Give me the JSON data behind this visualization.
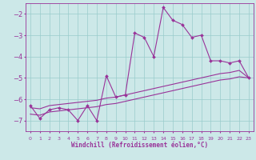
{
  "xlabel": "Windchill (Refroidissement éolien,°C)",
  "background_color": "#cce8e8",
  "grid_color": "#99cccc",
  "line_color": "#993399",
  "x_values": [
    0,
    1,
    2,
    3,
    4,
    5,
    6,
    7,
    8,
    9,
    10,
    11,
    12,
    13,
    14,
    15,
    16,
    17,
    18,
    19,
    20,
    21,
    22,
    23
  ],
  "y_main": [
    -6.3,
    -6.9,
    -6.5,
    -6.4,
    -6.5,
    -7.0,
    -6.3,
    -7.0,
    -4.9,
    -5.9,
    -5.8,
    -2.9,
    -3.1,
    -4.0,
    -1.7,
    -2.3,
    -2.5,
    -3.1,
    -3.0,
    -4.2,
    -4.2,
    -4.3,
    -4.2,
    -5.0
  ],
  "y_line2": [
    -6.4,
    -6.45,
    -6.3,
    -6.25,
    -6.2,
    -6.15,
    -6.1,
    -6.05,
    -5.95,
    -5.9,
    -5.8,
    -5.7,
    -5.6,
    -5.5,
    -5.4,
    -5.3,
    -5.2,
    -5.1,
    -5.0,
    -4.9,
    -4.8,
    -4.75,
    -4.65,
    -5.0
  ],
  "y_line3": [
    -6.7,
    -6.75,
    -6.6,
    -6.55,
    -6.5,
    -6.45,
    -6.4,
    -6.35,
    -6.25,
    -6.2,
    -6.1,
    -6.0,
    -5.9,
    -5.8,
    -5.7,
    -5.6,
    -5.5,
    -5.4,
    -5.3,
    -5.2,
    -5.1,
    -5.05,
    -4.95,
    -5.0
  ],
  "ylim": [
    -7.5,
    -1.5
  ],
  "xlim": [
    -0.5,
    23.5
  ],
  "yticks": [
    -7,
    -6,
    -5,
    -4,
    -3,
    -2
  ],
  "xtick_labels": [
    "0",
    "1",
    "2",
    "3",
    "4",
    "5",
    "6",
    "7",
    "8",
    "9",
    "10",
    "11",
    "12",
    "13",
    "14",
    "15",
    "16",
    "17",
    "18",
    "19",
    "20",
    "21",
    "22",
    "23"
  ]
}
